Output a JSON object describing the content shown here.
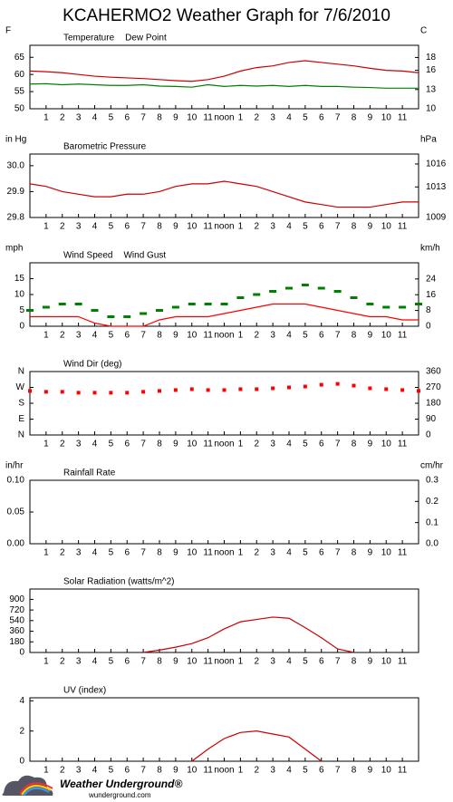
{
  "page": {
    "title": "KCAHERMO2 Weather Graph for 7/6/2010",
    "logo": "Weather Underground®",
    "url": "wunderground.com"
  },
  "chart_data": [
    {
      "type": "line",
      "ylabel": "F",
      "y2label": "C",
      "x": [
        0,
        1,
        2,
        3,
        4,
        5,
        6,
        7,
        8,
        9,
        10,
        11,
        12,
        13,
        14,
        15,
        16,
        17,
        18,
        19,
        20,
        21,
        22,
        23,
        24
      ],
      "xlim": [
        0,
        24
      ],
      "xticks": [
        1,
        2,
        3,
        4,
        5,
        6,
        7,
        8,
        9,
        10,
        11,
        {
          "value": 12,
          "label": "noon"
        },
        {
          "value": 13,
          "label": "1"
        },
        {
          "value": 14,
          "label": "2"
        },
        {
          "value": 15,
          "label": "3"
        },
        {
          "value": 16,
          "label": "4"
        },
        {
          "value": 17,
          "label": "5"
        },
        {
          "value": 18,
          "label": "6"
        },
        {
          "value": 19,
          "label": "7"
        },
        {
          "value": 20,
          "label": "8"
        },
        {
          "value": 21,
          "label": "9"
        },
        {
          "value": 22,
          "label": "10"
        },
        {
          "value": 23,
          "label": "11"
        }
      ],
      "ylim": [
        50,
        68.5
      ],
      "yticks": [
        50,
        55,
        60,
        65
      ],
      "y2lim": [
        10,
        19.9
      ],
      "y2ticks": [
        10,
        13,
        16,
        18
      ],
      "series": [
        {
          "name": "Temperature",
          "color": "#cc0000",
          "values": [
            61,
            60.8,
            60.5,
            60,
            59.5,
            59.2,
            59,
            58.8,
            58.5,
            58.2,
            58,
            58.5,
            59.5,
            61,
            62,
            62.5,
            63.5,
            64,
            63.5,
            63,
            62.5,
            61.8,
            61.2,
            61,
            60.5
          ]
        },
        {
          "name": "Dew Point",
          "color": "#008000",
          "values": [
            57.2,
            57.3,
            57,
            57.2,
            57,
            56.8,
            56.8,
            57,
            56.6,
            56.5,
            56.3,
            57,
            56.5,
            56.8,
            56.6,
            56.8,
            56.5,
            56.8,
            56.5,
            56.5,
            56.3,
            56.2,
            56,
            56,
            56
          ]
        }
      ]
    },
    {
      "type": "line",
      "ylabel": "in Hg",
      "y2label": "hPa",
      "x": [
        0,
        1,
        2,
        3,
        4,
        5,
        6,
        7,
        8,
        9,
        10,
        11,
        12,
        13,
        14,
        15,
        16,
        17,
        18,
        19,
        20,
        21,
        22,
        23,
        24
      ],
      "xlim": [
        0,
        24
      ],
      "xticks": [
        1,
        2,
        3,
        4,
        5,
        6,
        7,
        8,
        9,
        10,
        11,
        {
          "value": 12,
          "label": "noon"
        },
        {
          "value": 13,
          "label": "1"
        },
        {
          "value": 14,
          "label": "2"
        },
        {
          "value": 15,
          "label": "3"
        },
        {
          "value": 16,
          "label": "4"
        },
        {
          "value": 17,
          "label": "5"
        },
        {
          "value": 18,
          "label": "6"
        },
        {
          "value": 19,
          "label": "7"
        },
        {
          "value": 20,
          "label": "8"
        },
        {
          "value": 21,
          "label": "9"
        },
        {
          "value": 22,
          "label": "10"
        },
        {
          "value": 23,
          "label": "11"
        }
      ],
      "ylim": [
        29.8,
        30.045
      ],
      "yticks": [
        29.8,
        29.9,
        {
          "value": 30,
          "label": "30.0"
        }
      ],
      "y2lim": [
        1009,
        1017.3
      ],
      "y2ticks": [
        1009,
        1013,
        1016
      ],
      "series": [
        {
          "name": "Barometric Pressure",
          "color": "#cc0000",
          "values": [
            29.93,
            29.92,
            29.9,
            29.89,
            29.88,
            29.88,
            29.89,
            29.89,
            29.9,
            29.92,
            29.93,
            29.93,
            29.94,
            29.93,
            29.92,
            29.9,
            29.88,
            29.86,
            29.85,
            29.84,
            29.84,
            29.84,
            29.85,
            29.86,
            29.86
          ]
        }
      ]
    },
    {
      "type": "line",
      "ylabel": "mph",
      "y2label": "km/h",
      "x": [
        0,
        1,
        2,
        3,
        4,
        5,
        6,
        7,
        8,
        9,
        10,
        11,
        12,
        13,
        14,
        15,
        16,
        17,
        18,
        19,
        20,
        21,
        22,
        23,
        24
      ],
      "xlim": [
        0,
        24
      ],
      "xticks": [
        1,
        2,
        3,
        4,
        5,
        6,
        7,
        8,
        9,
        10,
        11,
        {
          "value": 12,
          "label": "noon"
        },
        {
          "value": 13,
          "label": "1"
        },
        {
          "value": 14,
          "label": "2"
        },
        {
          "value": 15,
          "label": "3"
        },
        {
          "value": 16,
          "label": "4"
        },
        {
          "value": 17,
          "label": "5"
        },
        {
          "value": 18,
          "label": "6"
        },
        {
          "value": 19,
          "label": "7"
        },
        {
          "value": 20,
          "label": "8"
        },
        {
          "value": 21,
          "label": "9"
        },
        {
          "value": 22,
          "label": "10"
        },
        {
          "value": 23,
          "label": "11"
        }
      ],
      "ylim": [
        0,
        20
      ],
      "yticks": [
        0,
        5,
        10,
        15
      ],
      "y2lim": [
        0,
        32.2
      ],
      "y2ticks": [
        0,
        8,
        16,
        24
      ],
      "series": [
        {
          "name": "Wind Speed",
          "color": "#ff0000",
          "values": [
            3,
            3,
            3,
            3,
            1,
            0,
            0,
            0,
            2,
            3,
            3,
            3,
            4,
            5,
            6,
            7,
            7,
            7,
            6,
            5,
            4,
            3,
            3,
            2,
            2
          ]
        },
        {
          "name": "Wind Gust",
          "color": "#008000",
          "marker": "dash",
          "values": [
            5,
            6,
            7,
            7,
            5,
            3,
            3,
            4,
            5,
            6,
            7,
            7,
            7,
            9,
            10,
            11,
            12,
            13,
            12,
            11,
            9,
            7,
            6,
            6,
            7
          ]
        }
      ]
    },
    {
      "type": "scatter",
      "y2label": null,
      "x": [
        0,
        1,
        2,
        3,
        4,
        5,
        6,
        7,
        8,
        9,
        10,
        11,
        12,
        13,
        14,
        15,
        16,
        17,
        18,
        19,
        20,
        21,
        22,
        23,
        24
      ],
      "xlim": [
        0,
        24
      ],
      "xticks": [
        1,
        2,
        3,
        4,
        5,
        6,
        7,
        8,
        9,
        10,
        11,
        {
          "value": 12,
          "label": "noon"
        },
        {
          "value": 13,
          "label": "1"
        },
        {
          "value": 14,
          "label": "2"
        },
        {
          "value": 15,
          "label": "3"
        },
        {
          "value": 16,
          "label": "4"
        },
        {
          "value": 17,
          "label": "5"
        },
        {
          "value": 18,
          "label": "6"
        },
        {
          "value": 19,
          "label": "7"
        },
        {
          "value": 20,
          "label": "8"
        },
        {
          "value": 21,
          "label": "9"
        },
        {
          "value": 22,
          "label": "10"
        },
        {
          "value": 23,
          "label": "11"
        }
      ],
      "ylim": [
        0,
        360
      ],
      "yticks": [
        {
          "value": 0,
          "label": "N"
        },
        {
          "value": 90,
          "label": "E"
        },
        {
          "value": 180,
          "label": "S"
        },
        {
          "value": 270,
          "label": "W"
        },
        {
          "value": 360,
          "label": "N"
        }
      ],
      "y2lim": [
        0,
        360
      ],
      "y2ticks": [
        0,
        90,
        180,
        270,
        360
      ],
      "series": [
        {
          "name": "Wind Dir (deg)",
          "color": "#ff0000",
          "values": [
            250,
            245,
            245,
            240,
            240,
            240,
            240,
            245,
            250,
            255,
            260,
            255,
            255,
            260,
            260,
            265,
            270,
            275,
            285,
            290,
            280,
            265,
            260,
            255,
            250
          ]
        }
      ]
    },
    {
      "type": "line",
      "ylabel": "in/hr",
      "y2label": "cm/hr",
      "x": [
        0,
        1,
        2,
        3,
        4,
        5,
        6,
        7,
        8,
        9,
        10,
        11,
        12,
        13,
        14,
        15,
        16,
        17,
        18,
        19,
        20,
        21,
        22,
        23,
        24
      ],
      "xlim": [
        0,
        24
      ],
      "xticks": [
        1,
        2,
        3,
        4,
        5,
        6,
        7,
        8,
        9,
        10,
        11,
        {
          "value": 12,
          "label": "noon"
        },
        {
          "value": 13,
          "label": "1"
        },
        {
          "value": 14,
          "label": "2"
        },
        {
          "value": 15,
          "label": "3"
        },
        {
          "value": 16,
          "label": "4"
        },
        {
          "value": 17,
          "label": "5"
        },
        {
          "value": 18,
          "label": "6"
        },
        {
          "value": 19,
          "label": "7"
        },
        {
          "value": 20,
          "label": "8"
        },
        {
          "value": 21,
          "label": "9"
        },
        {
          "value": 22,
          "label": "10"
        },
        {
          "value": 23,
          "label": "11"
        }
      ],
      "ylim": [
        0,
        0.1
      ],
      "yticks": [
        {
          "value": 0,
          "label": "0.00"
        },
        {
          "value": 0.05,
          "label": "0.05"
        },
        {
          "value": 0.1,
          "label": "0.10"
        }
      ],
      "y2lim": [
        0,
        0.3
      ],
      "y2ticks": [
        {
          "value": 0,
          "label": "0.0"
        },
        0.1,
        0.2,
        0.3
      ],
      "series": [
        {
          "name": "Rainfall Rate",
          "color": "#ff0000",
          "values": [
            null,
            null,
            null,
            null,
            null,
            null,
            null,
            null,
            null,
            null,
            null,
            null,
            null,
            null,
            null,
            null,
            null,
            null,
            null,
            null,
            null,
            null,
            null,
            null,
            null
          ]
        }
      ]
    },
    {
      "type": "line",
      "x": [
        0,
        1,
        2,
        3,
        4,
        5,
        6,
        7,
        8,
        9,
        10,
        11,
        12,
        13,
        14,
        15,
        16,
        17,
        18,
        19,
        20,
        21,
        22,
        23,
        24
      ],
      "xlim": [
        0,
        24
      ],
      "xticks": [
        1,
        2,
        3,
        4,
        5,
        6,
        7,
        8,
        9,
        10,
        11,
        {
          "value": 12,
          "label": "noon"
        },
        {
          "value": 13,
          "label": "1"
        },
        {
          "value": 14,
          "label": "2"
        },
        {
          "value": 15,
          "label": "3"
        },
        {
          "value": 16,
          "label": "4"
        },
        {
          "value": 17,
          "label": "5"
        },
        {
          "value": 18,
          "label": "6"
        },
        {
          "value": 19,
          "label": "7"
        },
        {
          "value": 20,
          "label": "8"
        },
        {
          "value": 21,
          "label": "9"
        },
        {
          "value": 22,
          "label": "10"
        },
        {
          "value": 23,
          "label": "11"
        }
      ],
      "ylim": [
        0,
        1075
      ],
      "yticks": [
        0,
        180,
        360,
        540,
        720,
        900
      ],
      "series": [
        {
          "name": "Solar Radiation (watts/m^2)",
          "color": "#cc0000",
          "values": [
            null,
            null,
            null,
            null,
            null,
            null,
            null,
            0,
            40,
            90,
            150,
            250,
            400,
            520,
            560,
            600,
            580,
            420,
            250,
            60,
            0,
            null,
            null,
            null,
            null
          ]
        }
      ]
    },
    {
      "type": "line",
      "x": [
        0,
        1,
        2,
        3,
        4,
        5,
        6,
        7,
        8,
        9,
        10,
        11,
        12,
        13,
        14,
        15,
        16,
        17,
        18,
        19,
        20,
        21,
        22,
        23,
        24
      ],
      "xlim": [
        0,
        24
      ],
      "xticks": [
        1,
        2,
        3,
        4,
        5,
        6,
        7,
        8,
        9,
        10,
        11,
        {
          "value": 12,
          "label": "noon"
        },
        {
          "value": 13,
          "label": "1"
        },
        {
          "value": 14,
          "label": "2"
        },
        {
          "value": 15,
          "label": "3"
        },
        {
          "value": 16,
          "label": "4"
        },
        {
          "value": 17,
          "label": "5"
        },
        {
          "value": 18,
          "label": "6"
        },
        {
          "value": 19,
          "label": "7"
        },
        {
          "value": 20,
          "label": "8"
        },
        {
          "value": 21,
          "label": "9"
        },
        {
          "value": 22,
          "label": "10"
        },
        {
          "value": 23,
          "label": "11"
        }
      ],
      "ylim": [
        0,
        4.2
      ],
      "yticks": [
        0,
        2,
        4
      ],
      "series": [
        {
          "name": "UV (index)",
          "color": "#cc0000",
          "values": [
            null,
            null,
            null,
            null,
            null,
            null,
            null,
            null,
            null,
            null,
            0,
            0.8,
            1.5,
            1.9,
            2,
            1.8,
            1.6,
            0.8,
            0,
            null,
            null,
            null,
            null,
            null,
            null
          ]
        }
      ]
    }
  ]
}
